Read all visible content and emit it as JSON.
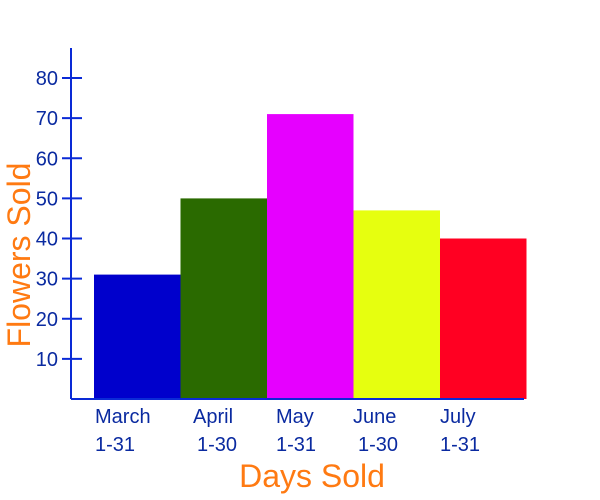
{
  "chart_data": {
    "type": "bar",
    "categories": [
      [
        "March",
        "1-31"
      ],
      [
        "April",
        "1-30"
      ],
      [
        "May",
        "1-31"
      ],
      [
        "June",
        "1-30"
      ],
      [
        "July",
        "1-31"
      ]
    ],
    "values": [
      31,
      50,
      71,
      47,
      40
    ],
    "bar_colors": [
      "#0000cc",
      "#2a6a00",
      "#e600ff",
      "#e6ff0f",
      "#ff0022"
    ],
    "xlabel": "Days Sold",
    "ylabel": "Flowers Sold",
    "yticks": [
      10,
      20,
      30,
      40,
      50,
      60,
      70,
      80
    ],
    "ylim": [
      0,
      88
    ],
    "grid": false,
    "axis_color": "#0a2ad6",
    "tick_label_color": "#0a2aa0",
    "axis_title_color": "#ff7a12"
  }
}
